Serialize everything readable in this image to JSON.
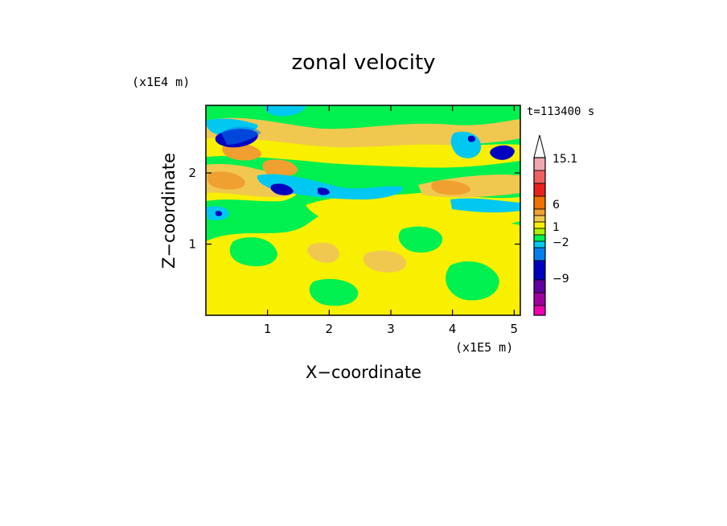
{
  "chart_data": {
    "type": "heatmap",
    "title": "zonal velocity",
    "xlabel": "X−coordinate",
    "ylabel": "Z−coordinate",
    "x_unit": "(x1E5 m)",
    "y_unit": "(x1E4 m)",
    "time_label": "t=113400 s",
    "xlim": [
      0,
      5.1
    ],
    "ylim": [
      0,
      2.95
    ],
    "x_ticks": [
      1,
      2,
      3,
      4,
      5
    ],
    "y_ticks": [
      1,
      2
    ],
    "x_tick_labels": [
      "1",
      "2",
      "3",
      "4",
      "5"
    ],
    "y_tick_labels": [
      "1",
      "2"
    ],
    "colorbar": {
      "label_values": [
        "15.1",
        "6",
        "1",
        "−2",
        "−9"
      ],
      "colors": [
        "#f0a8b0",
        "#f06060",
        "#e82020",
        "#f07000",
        "#f0a030",
        "#f0c850",
        "#f8f000",
        "#b0f000",
        "#00f050",
        "#00c8f0",
        "#0080f0",
        "#0000c0",
        "#6000a0",
        "#a000a0",
        "#f000b0"
      ],
      "max_arrow": true
    },
    "palette": {
      "background": "#00f050",
      "light_yellow": "#f8f870",
      "yellow": "#f0f000",
      "orange": "#f0c850",
      "dark_orange": "#f0a030",
      "cyan": "#00c8f0",
      "blue": "#0080f0",
      "navy": "#0000c0"
    }
  }
}
